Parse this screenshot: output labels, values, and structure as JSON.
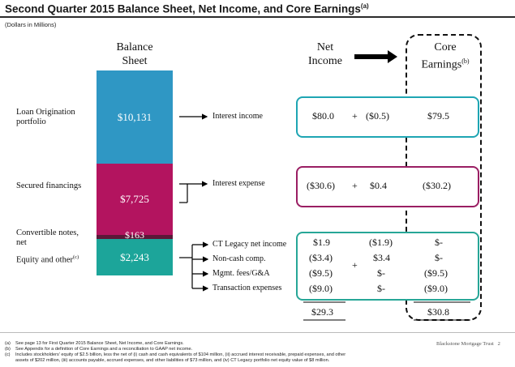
{
  "title": "Second Quarter 2015 Balance Sheet, Net Income, and Core Earnings",
  "title_note": "(a)",
  "units": "(Dollars in Millions)",
  "headers": {
    "balance_sheet_line1": "Balance",
    "balance_sheet_line2": "Sheet",
    "net_income_line1": "Net",
    "net_income_line2": "Income",
    "core_line1": "Core",
    "core_line2": "Earnings",
    "core_note": "(b)"
  },
  "balance_sheet": {
    "loan_origination": {
      "label_line1": "Loan Origination",
      "label_line2": "portfolio",
      "value": "$10,131",
      "amount": 10131,
      "color": "#2f97c4"
    },
    "secured_financings": {
      "label": "Secured financings",
      "value": "$7,725",
      "amount": 7725,
      "color": "#b3145f"
    },
    "convertible_notes": {
      "label_line1": "Convertible notes,",
      "label_line2": "net",
      "value": "$163",
      "amount": 163,
      "color": "#5c1838"
    },
    "equity": {
      "label": "Equity and other",
      "label_note": "(c)",
      "value": "$2,243",
      "amount": 2243,
      "color": "#1ca59a"
    }
  },
  "flows": {
    "interest_income": "Interest income",
    "interest_expense": "Interest expense",
    "ct_legacy": "CT Legacy net income",
    "non_cash": "Non-cash comp.",
    "mgmt_fees": "Mgmt. fees/G&A",
    "transaction": "Transaction expenses"
  },
  "income_rows": {
    "interest_income": {
      "net": "$80.0",
      "op": "+",
      "adj": "($0.5)",
      "core": "$79.5"
    },
    "interest_expense": {
      "net": "($30.6)",
      "op": "+",
      "adj": "$0.4",
      "core": "($30.2)"
    },
    "expense_rows": [
      {
        "net": "$1.9",
        "adj": "($1.9)",
        "core": "$-"
      },
      {
        "net": "($3.4)",
        "adj": "$3.4",
        "core": "$-"
      },
      {
        "net": "($9.5)",
        "adj": "$-",
        "core": "($9.5)"
      },
      {
        "net": "($9.0)",
        "adj": "$-",
        "core": "($9.0)"
      }
    ],
    "expense_op": "+"
  },
  "totals": {
    "net_income": "$29.3",
    "core_earnings": "$30.8"
  },
  "colors": {
    "accent_teal": "#1ea5b3",
    "accent_magenta": "#9a1e63",
    "accent_green": "#27a697",
    "arrow": "#000000"
  },
  "footnotes": [
    {
      "mark": "(a)",
      "text": "See page 13 for First Quarter 2015 Balance Sheet, Net Income, and Core Earnings."
    },
    {
      "mark": "(b)",
      "text": "See Appendix for a definition of Core Earnings and a reconciliation to GAAP net income."
    },
    {
      "mark": "(c)",
      "text": "Includes stockholders’ equity of $2.5 billion, less the net of (i) cash and cash equivalents of $104 million, (ii) accrued interest receivable, prepaid expenses, and other"
    },
    {
      "mark": "",
      "text": "assets of $202 million, (iii) accounts payable, accrued expenses, and other liabilities of $73 million, and (iv) CT Legacy portfolio net equity value of $8 million."
    }
  ],
  "brand": "Blackstone Mortgage Trust",
  "page_number": "2"
}
